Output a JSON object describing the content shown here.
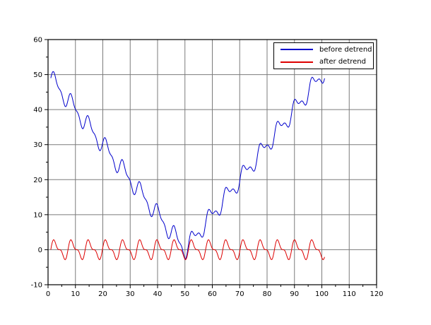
{
  "chart_data": {
    "type": "line",
    "title": "",
    "xlabel": "",
    "ylabel": "",
    "xlim": [
      0,
      120
    ],
    "ylim": [
      -10,
      60
    ],
    "x_major_ticks": [
      0,
      10,
      20,
      30,
      40,
      50,
      60,
      70,
      80,
      90,
      100,
      110,
      120
    ],
    "y_major_ticks": [
      -10,
      0,
      10,
      20,
      30,
      40,
      50,
      60
    ],
    "minor_tick_interval": 5,
    "grid": true,
    "grid_color": "#7b7b7b",
    "axis_color": "#000000",
    "background": "#ffffff",
    "legend": {
      "position": "top-right-inside",
      "border_color": "#000000",
      "entries": [
        {
          "label": "before detrend",
          "color": "#0000cc"
        },
        {
          "label": "after detrend",
          "color": "#dd0000"
        }
      ]
    },
    "series": [
      {
        "name": "before detrend",
        "color": "#0000cc",
        "x_start": 1,
        "x_end": 101,
        "x_step": 0.25,
        "description": "Signal with V-shaped trend plus oscillation: starts near 52 at x=1, descends with ~±3 wiggles to a minimum near 0 (dipping to about -2.5) around x=50, then rises back to about 50 at x=101.",
        "trend": {
          "type": "abs",
          "vertex_x": 50,
          "slope": 1,
          "offset": 0
        },
        "oscillation": [
          {
            "amplitude": 2.2,
            "omega": 1,
            "phase": -1
          },
          {
            "amplitude": 1.1,
            "omega": 2,
            "phase": -2
          }
        ]
      },
      {
        "name": "after detrend",
        "color": "#dd0000",
        "x_start": 1,
        "x_end": 101,
        "x_step": 0.25,
        "description": "Detrended signal oscillating about 0 over x=1..101, amplitude roughly ±3, repeating pattern with period ~6.3 (large peak plus smaller shoulder).",
        "trend": {
          "type": "none",
          "vertex_x": 0,
          "slope": 0,
          "offset": 0
        },
        "oscillation": [
          {
            "amplitude": 2.2,
            "omega": 1,
            "phase": -1
          },
          {
            "amplitude": 1.1,
            "omega": 2,
            "phase": -2
          }
        ]
      }
    ]
  }
}
